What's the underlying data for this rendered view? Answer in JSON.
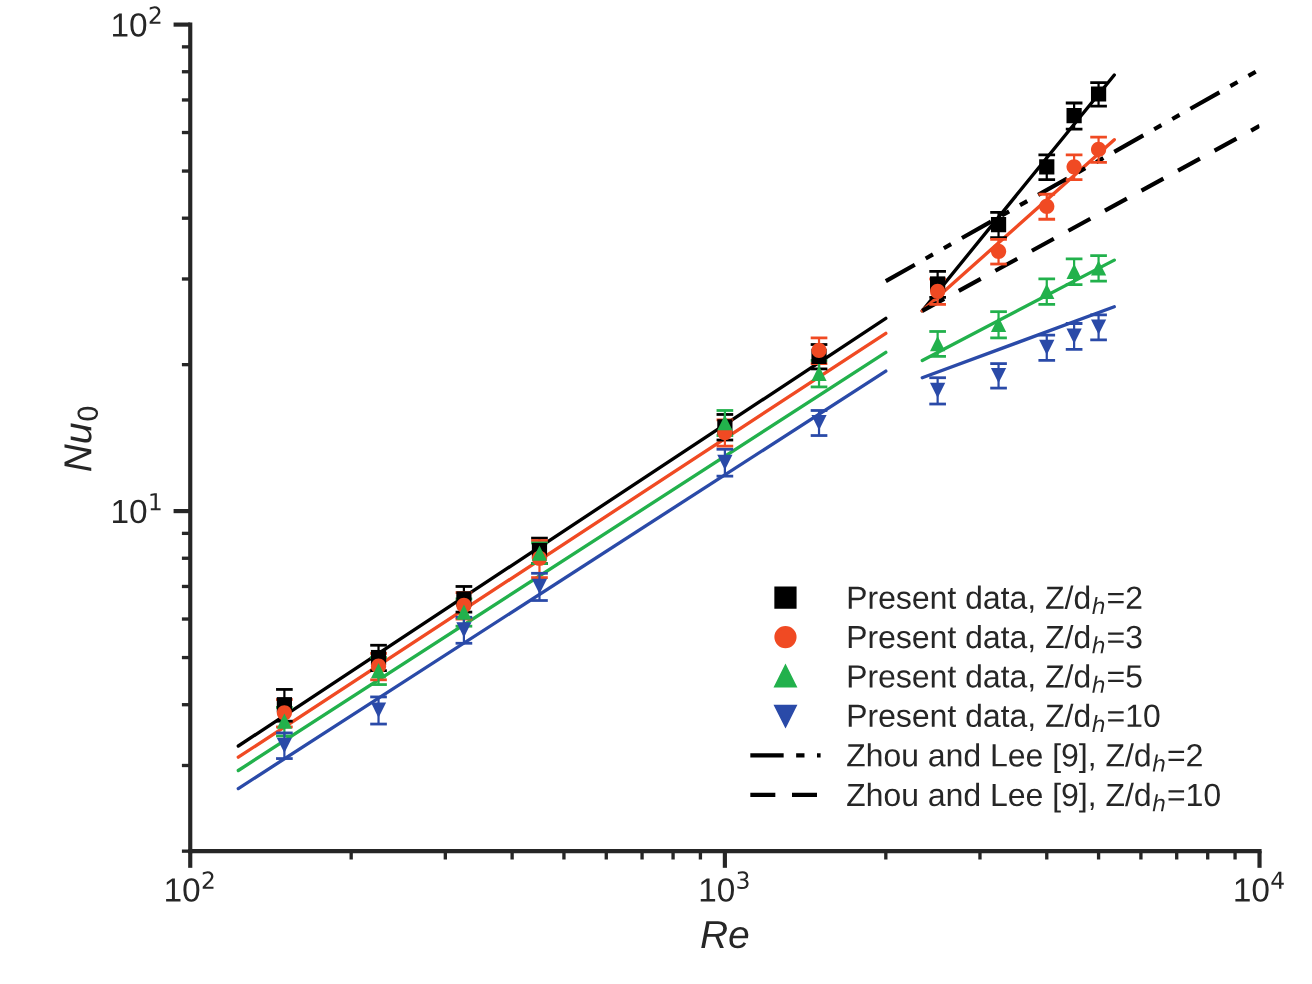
{
  "chart_data": {
    "type": "scatter",
    "xlabel": "Re",
    "ylabel": "Nu$_{0}$",
    "log": "xy",
    "xlim": [
      100,
      10000
    ],
    "ylim": [
      2,
      100
    ],
    "xticks": [
      {
        "value": 100,
        "label": "10$^{2}$"
      },
      {
        "value": 1000,
        "label": "10$^{3}$"
      },
      {
        "value": 10000,
        "label": "10$^{4}$"
      }
    ],
    "yticks": [
      {
        "value": 10,
        "label": "10$^{1}$"
      },
      {
        "value": 100,
        "label": "10$^{2}$"
      }
    ],
    "grid": false,
    "legend": "bottom right",
    "series": [
      {
        "name": "Present data, Z/d$_{h}$=2",
        "color": "#000000",
        "marker": "square",
        "x": [
          150,
          225,
          325,
          450,
          1000,
          1500,
          2500,
          3250,
          4000,
          4500,
          5000
        ],
        "values": [
          4.0,
          5.0,
          6.6,
          8.3,
          14.9,
          20.8,
          29.3,
          38.8,
          51,
          65,
          72
        ],
        "errors": [
          0.3,
          0.3,
          0.4,
          0.5,
          0.9,
          1.2,
          1.8,
          2.3,
          3,
          4,
          4
        ]
      },
      {
        "name": "Present data, Z/d$_{h}$=3",
        "color": "#f04a23",
        "marker": "circle",
        "x": [
          150,
          225,
          325,
          450,
          1000,
          1500,
          2500,
          3250,
          4000,
          4500,
          5000
        ],
        "values": [
          3.85,
          4.8,
          6.4,
          8.0,
          14.5,
          21.4,
          28.3,
          34.2,
          42.3,
          51,
          55.4
        ],
        "errors": [
          0.25,
          0.3,
          0.4,
          0.7,
          0.9,
          1.3,
          1.7,
          2,
          2.5,
          3,
          3.3
        ]
      },
      {
        "name": "Present data, Z/d$_{h}$=5",
        "color": "#22b14c",
        "marker": "triangle",
        "x": [
          150,
          225,
          325,
          450,
          1000,
          1500,
          2500,
          3250,
          4000,
          4500,
          5000
        ],
        "values": [
          3.7,
          4.7,
          6.2,
          8.2,
          15.2,
          19.2,
          22.1,
          24.2,
          28.3,
          31.1,
          31.6
        ],
        "errors": [
          0.25,
          0.3,
          0.4,
          0.4,
          0.9,
          1.2,
          1.3,
          1.5,
          1.7,
          1.9,
          1.9
        ]
      },
      {
        "name": "Present data, Z/d$_{h}$=10",
        "color": "#2a4aa8",
        "marker": "triangle_down",
        "x": [
          150,
          225,
          325,
          450,
          1000,
          1500,
          2500,
          3250,
          4000,
          4500,
          5000
        ],
        "values": [
          3.3,
          3.9,
          5.7,
          7.0,
          12.6,
          15.2,
          17.7,
          19.0,
          21.7,
          22.9,
          23.9
        ],
        "errors": [
          0.2,
          0.25,
          0.35,
          0.45,
          0.8,
          0.9,
          1.1,
          1.1,
          1.3,
          1.4,
          1.4
        ]
      },
      {
        "color": "#000000",
        "type": "line",
        "line_style": "solid",
        "x": [
          123,
          2000
        ],
        "values": [
          3.29,
          24.9
        ]
      },
      {
        "color": "#f04a23",
        "type": "line",
        "line_style": "solid",
        "x": [
          123,
          2000
        ],
        "values": [
          3.12,
          23.2
        ]
      },
      {
        "color": "#22b14c",
        "type": "line",
        "line_style": "solid",
        "x": [
          123,
          2000
        ],
        "values": [
          2.93,
          21.2
        ]
      },
      {
        "color": "#2a4aa8",
        "type": "line",
        "line_style": "solid",
        "x": [
          123,
          2000
        ],
        "values": [
          2.69,
          19.4
        ]
      },
      {
        "color": "#000000",
        "type": "line",
        "line_style": "solid",
        "x": [
          2340,
          5350
        ],
        "values": [
          25.8,
          78.8
        ]
      },
      {
        "color": "#f04a23",
        "type": "line",
        "line_style": "solid",
        "x": [
          2340,
          5350
        ],
        "values": [
          25.8,
          58
        ]
      },
      {
        "color": "#22b14c",
        "type": "line",
        "line_style": "solid",
        "x": [
          2340,
          5350
        ],
        "values": [
          20.4,
          32.8
        ]
      },
      {
        "color": "#2a4aa8",
        "type": "line",
        "line_style": "solid",
        "x": [
          2340,
          5350
        ],
        "values": [
          18.8,
          26.3
        ]
      },
      {
        "name": "Zhou and Lee [9], Z/d$_{h}$=2",
        "color": "#000000",
        "type": "line",
        "line_style": "dashdot",
        "x": [
          2000,
          10000
        ],
        "values": [
          29.7,
          80.8
        ]
      },
      {
        "name": "Zhou and Lee [9], Z/d$_{h}$=10",
        "color": "#000000",
        "type": "line",
        "line_style": "dashed",
        "x": [
          2340,
          10000
        ],
        "values": [
          25.8,
          61.9
        ]
      }
    ]
  }
}
